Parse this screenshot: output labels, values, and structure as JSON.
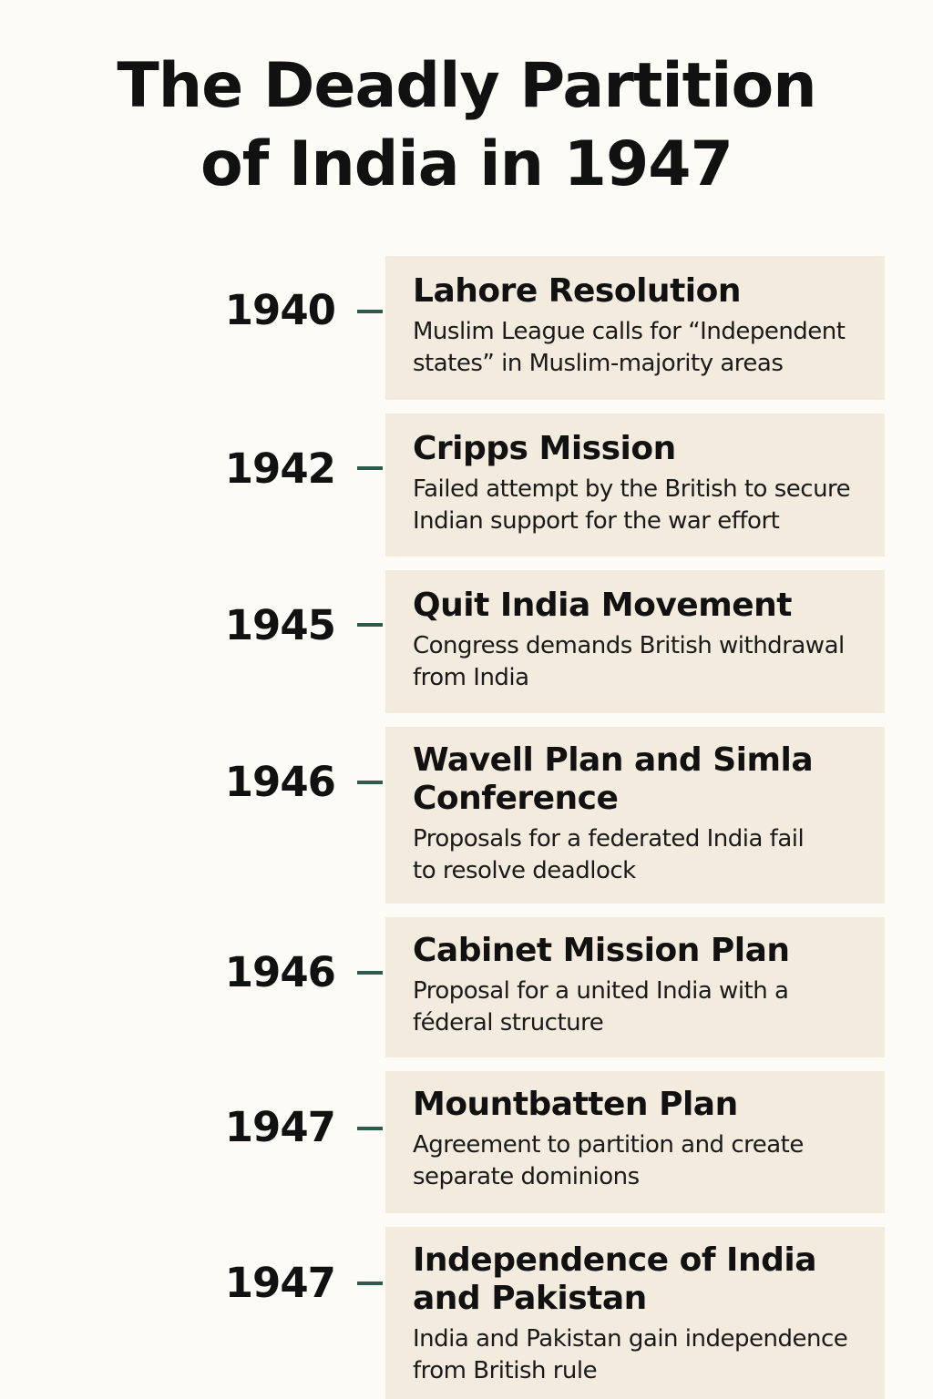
{
  "title": {
    "line1": "The Deadly Partition",
    "line2": "of India in 1947"
  },
  "events": [
    {
      "year": "1940",
      "title": "Lahore Resolution",
      "description": "Muslim League calls for “Independent states” in Muslim-majority areas"
    },
    {
      "year": "1942",
      "title": "Cripps Mission",
      "description": "Failed attempt by the British to secure Indian support for the war effort"
    },
    {
      "year": "1945",
      "title": "Quit India Movement",
      "description": "Congress demands British withdrawal from India"
    },
    {
      "year": "1946",
      "title": "Wavell Plan and Simla Conference",
      "description": "Proposals for a federated India fail to resolve deadlock"
    },
    {
      "year": "1946",
      "title": "Cabinet Mission Plan",
      "description": "Proposal for a united India with a féderal structure"
    },
    {
      "year": "1947",
      "title": "Mountbatten Plan",
      "description": "Agreement to partition  and create separate dominions"
    },
    {
      "year": "1947",
      "title": "Independence of India and Pakistan",
      "description": "India and Pakistan gain independence from British rule"
    }
  ],
  "colors": {
    "background": "#fcfbf6",
    "card": "#f3ebde",
    "connector": "#2f5a4e",
    "text": "#111111"
  }
}
